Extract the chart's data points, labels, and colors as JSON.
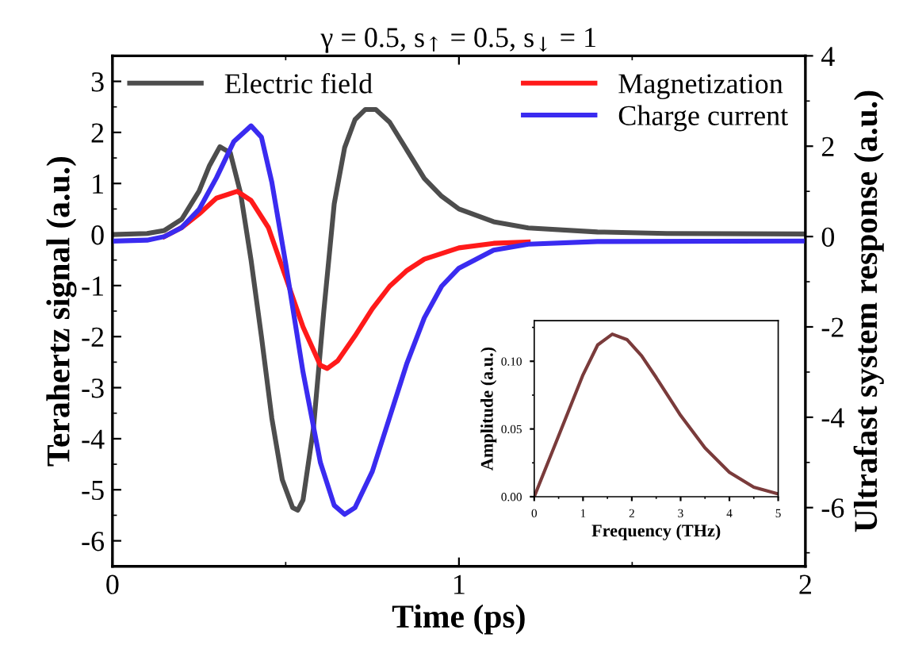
{
  "chart_data": [
    {
      "type": "line",
      "title": "γ = 0.5, s$_{↑}$ = 0.5, s$_{↓}$ = 1",
      "xlabel": "Time (ps)",
      "ylabel": "Terahertz signal (a.u.)",
      "y2label": "Ultrafast system response (a.u.)",
      "xlim": [
        0,
        2
      ],
      "xticks": [
        0,
        1,
        2
      ],
      "ylim": [
        -6.5,
        3.5
      ],
      "yticks": [
        -6,
        -5,
        -4,
        -3,
        -2,
        -1,
        0,
        1,
        2,
        3
      ],
      "y2lim": [
        -7.3,
        4
      ],
      "y2ticks": [
        -6,
        -4,
        -2,
        0,
        2,
        4
      ],
      "grid": false,
      "legend": "top",
      "series": [
        {
          "name": "Electric field",
          "color": "#4d4d4d",
          "x": [
            0,
            0.1,
            0.15,
            0.2,
            0.25,
            0.28,
            0.31,
            0.34,
            0.37,
            0.4,
            0.43,
            0.46,
            0.49,
            0.52,
            0.535,
            0.55,
            0.58,
            0.61,
            0.64,
            0.67,
            0.7,
            0.73,
            0.76,
            0.8,
            0.85,
            0.9,
            0.95,
            1.0,
            1.1,
            1.2,
            1.4,
            1.6,
            2.0
          ],
          "values": [
            0,
            0.02,
            0.08,
            0.3,
            0.85,
            1.35,
            1.72,
            1.6,
            0.8,
            -0.5,
            -2.0,
            -3.6,
            -4.8,
            -5.35,
            -5.4,
            -5.2,
            -3.8,
            -1.5,
            0.6,
            1.7,
            2.25,
            2.45,
            2.45,
            2.2,
            1.65,
            1.1,
            0.75,
            0.5,
            0.25,
            0.13,
            0.05,
            0.02,
            0.01
          ]
        },
        {
          "name": "Magnetization",
          "color": "#ff1a1a",
          "axis": "y2",
          "x": [
            0.15,
            0.2,
            0.25,
            0.3,
            0.36,
            0.4,
            0.45,
            0.5,
            0.55,
            0.6,
            0.62,
            0.65,
            0.7,
            0.75,
            0.8,
            0.85,
            0.9,
            1.0,
            1.1,
            1.2
          ],
          "values": [
            0.0,
            0.2,
            0.5,
            0.85,
            1.0,
            0.8,
            0.2,
            -0.9,
            -2.0,
            -2.85,
            -2.92,
            -2.75,
            -2.2,
            -1.6,
            -1.1,
            -0.75,
            -0.5,
            -0.25,
            -0.15,
            -0.12
          ]
        },
        {
          "name": "Charge current",
          "color": "#3a2bf0",
          "axis": "y2",
          "x": [
            0,
            0.1,
            0.15,
            0.2,
            0.25,
            0.3,
            0.35,
            0.4,
            0.43,
            0.46,
            0.5,
            0.55,
            0.6,
            0.64,
            0.67,
            0.7,
            0.75,
            0.8,
            0.85,
            0.9,
            0.95,
            1.0,
            1.1,
            1.2,
            1.4,
            2.0
          ],
          "values": [
            -0.1,
            -0.08,
            0.0,
            0.2,
            0.6,
            1.3,
            2.1,
            2.45,
            2.2,
            1.2,
            -0.6,
            -3.0,
            -5.0,
            -5.95,
            -6.15,
            -6.0,
            -5.2,
            -4.0,
            -2.8,
            -1.8,
            -1.1,
            -0.7,
            -0.3,
            -0.17,
            -0.11,
            -0.1
          ]
        }
      ]
    },
    {
      "type": "line",
      "xlabel": "Frequency (THz)",
      "ylabel": "Amplitude (a.u.)",
      "xlim": [
        0,
        5
      ],
      "xticks": [
        0,
        1,
        2,
        3,
        4,
        5
      ],
      "ylim": [
        0,
        0.13
      ],
      "yticks": [
        {
          "value": 0,
          "label": "0.00"
        },
        {
          "value": 0.05,
          "label": "0.05"
        },
        {
          "value": 0.1,
          "label": "0.10"
        }
      ],
      "grid": false,
      "series": [
        {
          "color": "#7a3b3b",
          "x": [
            0,
            0.5,
            1,
            1.3,
            1.6,
            1.9,
            2.2,
            2.5,
            3,
            3.5,
            4,
            4.5,
            5
          ],
          "values": [
            0,
            0.045,
            0.09,
            0.112,
            0.12,
            0.116,
            0.104,
            0.088,
            0.06,
            0.036,
            0.018,
            0.007,
            0.002
          ]
        }
      ]
    }
  ]
}
